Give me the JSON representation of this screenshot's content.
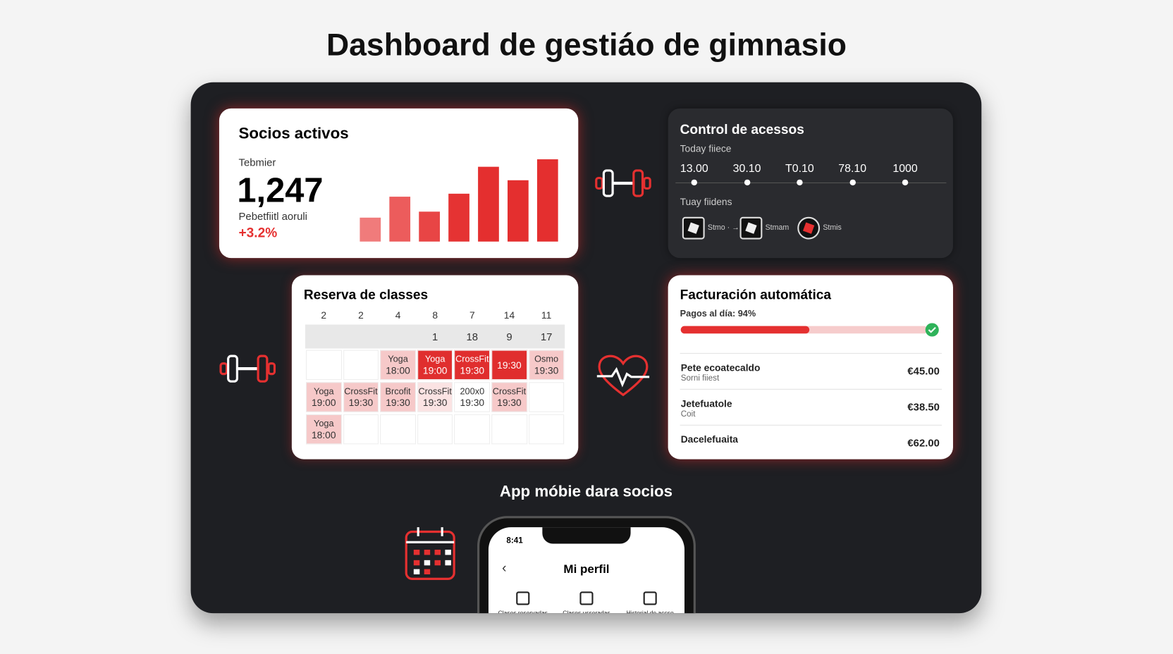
{
  "title": "Dashboard de gestiáo de gimnasio",
  "members": {
    "title": "Socios activos",
    "label": "Tebmier",
    "value": "1,247",
    "sublabel": "Pebetfiitl aoruli",
    "change": "+3.2%",
    "chart": {
      "type": "bar",
      "values": [
        32,
        60,
        40,
        64,
        100,
        82,
        110
      ],
      "colors": [
        "#f07b7b",
        "#ec5c5c",
        "#e84545",
        "#e53333",
        "#e42f2f",
        "#e42f2f",
        "#e42f2f"
      ]
    }
  },
  "access": {
    "title": "Control de acessos",
    "subtitle": "Today fiiece",
    "times": [
      "13.00",
      "30.10",
      "T0.10",
      "78.10",
      "1000"
    ],
    "section": "Tuay fiidens",
    "entries": [
      "Stmo · →",
      "Stmam",
      "Stmis"
    ]
  },
  "classes": {
    "title": "Reserva de classes",
    "days": [
      "2",
      "2",
      "4",
      "8",
      "7",
      "14",
      "11"
    ],
    "dates": [
      null,
      null,
      null,
      "1",
      "18",
      "9",
      "17"
    ],
    "rows": [
      [
        null,
        null,
        {
          "name": "Yoga",
          "time": "18:00",
          "style": "light"
        },
        {
          "name": "Yoga",
          "time": "19:00",
          "style": "dark"
        },
        {
          "name": "CrossFit",
          "time": "19:30",
          "style": "dark"
        },
        {
          "time": "19:30",
          "style": "dark"
        },
        {
          "name": "Osmo",
          "time": "19:30",
          "style": "light"
        }
      ],
      [
        {
          "name": "Yoga",
          "time": "19:00",
          "style": "light"
        },
        {
          "name": "CrossFit",
          "time": "19:30",
          "style": "light"
        },
        {
          "name": "Brcofit",
          "time": "19:30",
          "style": "light"
        },
        {
          "name": "CrossFit",
          "time": "19:30",
          "style": "pale"
        },
        {
          "name": "200x0",
          "time": "19:30",
          "style": "white"
        },
        {
          "name": "CrossFit",
          "time": "19:30",
          "style": "light"
        },
        null
      ],
      [
        {
          "name": "Yoga",
          "time": "18:00",
          "style": "light"
        },
        null,
        null,
        null,
        null,
        null,
        null
      ]
    ]
  },
  "billing": {
    "title": "Facturación automática",
    "status": "Pagos al día: 94%",
    "progress": 52,
    "rows": [
      {
        "name": "Pete ecoatecaldo",
        "note": "Sorni fiiest",
        "amount": "€45.00"
      },
      {
        "name": "Jetefuatole",
        "note": "Coit",
        "amount": "€38.50"
      },
      {
        "name": "Dacelefuaita",
        "amount": "€62.00"
      }
    ]
  },
  "app": {
    "title": "App móbie dara socios",
    "status": "8:41",
    "screen_title": "Mi perfil",
    "tabs": [
      "Clases reservadas",
      "Clases usseradas",
      "Historial de accso"
    ]
  }
}
